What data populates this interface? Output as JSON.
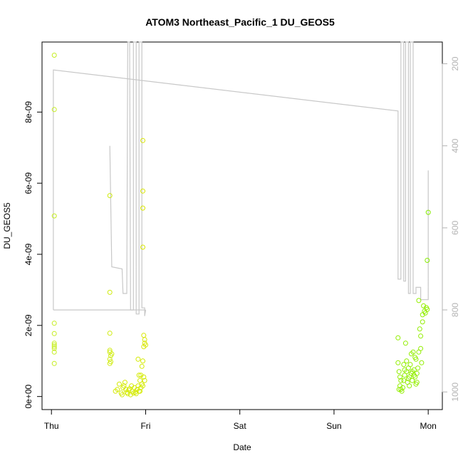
{
  "chart_data": {
    "type": "scatter",
    "title": "ATOM3 Northeast_Pacific_1 DU_GEOS5",
    "xlabel": "Date",
    "ylabel": "DU_GEOS5",
    "x_unit": "days",
    "xlim": [
      -0.1,
      4.15
    ],
    "ylim": [
      -3.67e-10,
      9.97e-09
    ],
    "x_ticks": [
      {
        "value": 0,
        "label": "Thu"
      },
      {
        "value": 1,
        "label": "Fri"
      },
      {
        "value": 2,
        "label": "Sat"
      },
      {
        "value": 3,
        "label": "Sun"
      },
      {
        "value": 4,
        "label": "Mon"
      }
    ],
    "y_ticks": [
      {
        "value": 0,
        "label": "0e+00"
      },
      {
        "value": 2e-09,
        "label": "2e-09"
      },
      {
        "value": 4e-09,
        "label": "4e-09"
      },
      {
        "value": 6e-09,
        "label": "6e-09"
      },
      {
        "value": 8e-09,
        "label": "8e-09"
      }
    ],
    "y2_ticks": [
      {
        "value": 200,
        "label": "200"
      },
      {
        "value": 400,
        "label": "400"
      },
      {
        "value": 600,
        "label": "600"
      },
      {
        "value": 800,
        "label": "800"
      },
      {
        "value": 1000,
        "label": "1000"
      }
    ],
    "y2lim": [
      1043,
      147
    ],
    "colors": {
      "points_early": "#ccee33",
      "points_mid": "#d4ea00",
      "points_late": "#88ee00",
      "pressure_line": "#c8c8c8",
      "axis": "#000000",
      "right_axis": "#b3b3b3"
    },
    "series": [
      {
        "kind": "points",
        "color": "#c6ee22",
        "points": [
          [
            0.03,
            9.6e-09
          ],
          [
            0.03,
            8.07e-09
          ],
          [
            0.03,
            5.08e-09
          ],
          [
            0.03,
            2.06e-09
          ],
          [
            0.03,
            1.77e-09
          ],
          [
            0.03,
            1.5e-09
          ],
          [
            0.03,
            1.45e-09
          ],
          [
            0.03,
            1.4e-09
          ],
          [
            0.03,
            1.35e-09
          ],
          [
            0.03,
            1.25e-09
          ],
          [
            0.03,
            9.3e-10
          ]
        ]
      },
      {
        "kind": "points",
        "color": "#d0ec11",
        "points": [
          [
            0.62,
            5.65e-09
          ],
          [
            0.62,
            2.93e-09
          ],
          [
            0.62,
            1.78e-09
          ],
          [
            0.62,
            1.3e-09
          ],
          [
            0.62,
            1.25e-09
          ],
          [
            0.63,
            1.15e-09
          ],
          [
            0.62,
            1.05e-09
          ],
          [
            0.63,
            9.8e-10
          ],
          [
            0.62,
            9.3e-10
          ],
          [
            0.64,
            1.2e-09
          ]
        ]
      },
      {
        "kind": "points",
        "color": "#d4ea00",
        "points": [
          [
            0.68,
            1.5e-10
          ],
          [
            0.7,
            2e-10
          ],
          [
            0.72,
            3.5e-10
          ],
          [
            0.74,
            1e-10
          ],
          [
            0.75,
            5e-11
          ],
          [
            0.76,
            2.5e-10
          ],
          [
            0.77,
            3e-10
          ],
          [
            0.78,
            4e-10
          ],
          [
            0.79,
            2e-10
          ],
          [
            0.8,
            1.2e-10
          ],
          [
            0.81,
            8e-11
          ],
          [
            0.82,
            1.8e-10
          ],
          [
            0.83,
            2.2e-10
          ],
          [
            0.84,
            5e-11
          ],
          [
            0.85,
            3e-10
          ],
          [
            0.86,
            1.5e-10
          ],
          [
            0.87,
            1e-10
          ],
          [
            0.88,
            2.5e-10
          ],
          [
            0.89,
            1.2e-10
          ],
          [
            0.9,
            8e-11
          ],
          [
            0.91,
            2e-10
          ],
          [
            0.92,
            3e-10
          ],
          [
            0.93,
            1.5e-10
          ],
          [
            0.94,
            4.5e-10
          ],
          [
            0.95,
            6e-10
          ],
          [
            0.96,
            8.5e-10
          ],
          [
            0.97,
            1e-09
          ],
          [
            0.98,
            5.5e-10
          ],
          [
            0.96,
            3.5e-10
          ],
          [
            0.95,
            2.5e-10
          ],
          [
            0.97,
            3e-10
          ],
          [
            0.94,
            1.5e-10
          ],
          [
            0.93,
            6e-10
          ],
          [
            0.92,
            1.05e-09
          ],
          [
            0.99,
            4.5e-10
          ]
        ]
      },
      {
        "kind": "points",
        "color": "#d8e600",
        "points": [
          [
            0.97,
            7.2e-09
          ],
          [
            0.97,
            5.78e-09
          ],
          [
            0.97,
            5.3e-09
          ],
          [
            0.97,
            4.2e-09
          ],
          [
            0.98,
            1.72e-09
          ],
          [
            0.99,
            1.6e-09
          ],
          [
            0.99,
            1.5e-09
          ],
          [
            1.0,
            1.45e-09
          ],
          [
            0.98,
            1.4e-09
          ]
        ]
      },
      {
        "kind": "points",
        "color": "#92ee00",
        "points": [
          [
            3.68,
            1.65e-09
          ],
          [
            3.68,
            9.5e-10
          ],
          [
            3.69,
            7e-10
          ],
          [
            3.7,
            5.5e-10
          ],
          [
            3.7,
            3e-10
          ],
          [
            3.71,
            2e-10
          ],
          [
            3.72,
            1.5e-10
          ],
          [
            3.73,
            2.5e-10
          ],
          [
            3.74,
            4.5e-10
          ],
          [
            3.75,
            6e-10
          ],
          [
            3.76,
            1.5e-09
          ],
          [
            3.77,
            7e-10
          ],
          [
            3.78,
            4e-10
          ],
          [
            3.79,
            8e-10
          ],
          [
            3.8,
            5.5e-10
          ],
          [
            3.81,
            9e-10
          ],
          [
            3.82,
            6.5e-10
          ],
          [
            3.83,
            4.5e-10
          ],
          [
            3.84,
            1.25e-09
          ],
          [
            3.85,
            7.5e-10
          ],
          [
            3.86,
            5.5e-10
          ],
          [
            3.87,
            3.5e-10
          ],
          [
            3.88,
            6.5e-10
          ],
          [
            3.89,
            8e-10
          ],
          [
            3.9,
            1.25e-09
          ],
          [
            3.9,
            2.7e-09
          ],
          [
            3.91,
            1.9e-09
          ],
          [
            3.92,
            1.35e-09
          ],
          [
            3.93,
            9.5e-10
          ],
          [
            3.94,
            2.1e-09
          ],
          [
            3.95,
            2.55e-09
          ],
          [
            3.96,
            2.4e-09
          ],
          [
            3.97,
            2.35e-09
          ],
          [
            3.98,
            2.5e-09
          ],
          [
            3.99,
            2.45e-09
          ],
          [
            3.75,
            7.5e-10
          ],
          [
            3.77,
            1e-09
          ],
          [
            3.8,
            3e-10
          ],
          [
            3.83,
            7e-10
          ],
          [
            3.86,
            1.1e-09
          ],
          [
            3.71,
            4.5e-10
          ],
          [
            3.74,
            9e-10
          ],
          [
            3.79,
            5e-10
          ],
          [
            3.82,
            1.2e-09
          ],
          [
            3.88,
            4e-10
          ],
          [
            3.92,
            1.7e-09
          ],
          [
            3.94,
            2.3e-09
          ],
          [
            3.87,
            1.05e-09
          ],
          [
            3.85,
            6e-10
          ],
          [
            3.69,
            2e-10
          ]
        ]
      },
      {
        "kind": "points",
        "color": "#86ee00",
        "points": [
          [
            4.0,
            5.18e-09
          ],
          [
            3.99,
            3.83e-09
          ]
        ]
      }
    ],
    "pressure_line": [
      [
        0.02,
        800
      ],
      [
        0.02,
        215
      ],
      [
        3.68,
        315
      ],
      [
        3.68,
        725
      ],
      [
        3.71,
        725
      ],
      [
        3.71,
        147
      ],
      [
        3.74,
        147
      ],
      [
        3.74,
        730
      ],
      [
        3.76,
        730
      ],
      [
        3.76,
        147
      ],
      [
        3.79,
        147
      ],
      [
        3.79,
        760
      ],
      [
        3.81,
        760
      ],
      [
        3.81,
        147
      ],
      [
        3.84,
        147
      ],
      [
        3.84,
        760
      ],
      [
        3.87,
        760
      ],
      [
        3.87,
        745
      ],
      [
        3.92,
        745
      ],
      [
        3.92,
        775
      ],
      [
        4.0,
        775
      ],
      [
        4.0,
        460
      ]
    ],
    "pressure_line_2": [
      [
        0.62,
        400
      ],
      [
        0.64,
        695
      ],
      [
        0.75,
        700
      ],
      [
        0.76,
        760
      ],
      [
        0.8,
        760
      ],
      [
        0.81,
        147
      ],
      [
        0.83,
        147
      ],
      [
        0.84,
        800
      ],
      [
        0.87,
        800
      ],
      [
        0.87,
        147
      ],
      [
        0.9,
        147
      ],
      [
        0.9,
        810
      ],
      [
        0.93,
        810
      ],
      [
        0.93,
        147
      ],
      [
        0.96,
        147
      ],
      [
        0.96,
        795
      ],
      [
        0.99,
        795
      ],
      [
        0.99,
        815
      ],
      [
        1.0,
        800
      ]
    ],
    "pressure_baseline": [
      [
        0.02,
        800
      ],
      [
        1.0,
        800
      ]
    ]
  }
}
